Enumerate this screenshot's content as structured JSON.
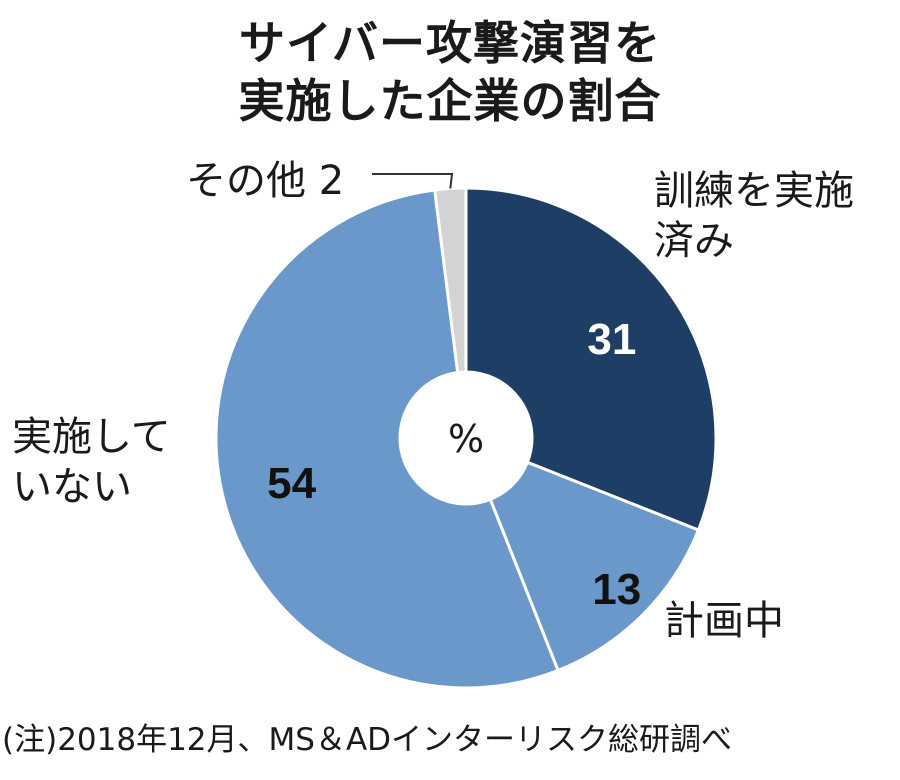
{
  "chart_data": {
    "type": "pie",
    "donut": true,
    "title_lines": [
      "サイバー攻撃演習を",
      "実施した企業の割合"
    ],
    "center_label": "%",
    "slices": [
      {
        "value": 31,
        "label_lines": [
          "訓練を実施",
          "済み"
        ],
        "value_label": "31",
        "color": "#1f3e66"
      },
      {
        "value": 13,
        "label_lines": [
          "計画中"
        ],
        "value_label": "13",
        "color": "#6b98cb"
      },
      {
        "value": 54,
        "label_lines": [
          "実施して",
          "いない"
        ],
        "value_label": "54",
        "color": "#6b98cb"
      },
      {
        "value": 2,
        "label_lines": [
          "その他 2"
        ],
        "value_label": "",
        "color": "#d3d3d3"
      }
    ],
    "note": "(注)2018年12月、MS＆ADインターリスク総研調べ"
  },
  "colors": {
    "dark_slice": "#1f3e66",
    "light_slice": "#6b98cb",
    "other_slice": "#d3d3d3",
    "separator": "#ffffff"
  }
}
